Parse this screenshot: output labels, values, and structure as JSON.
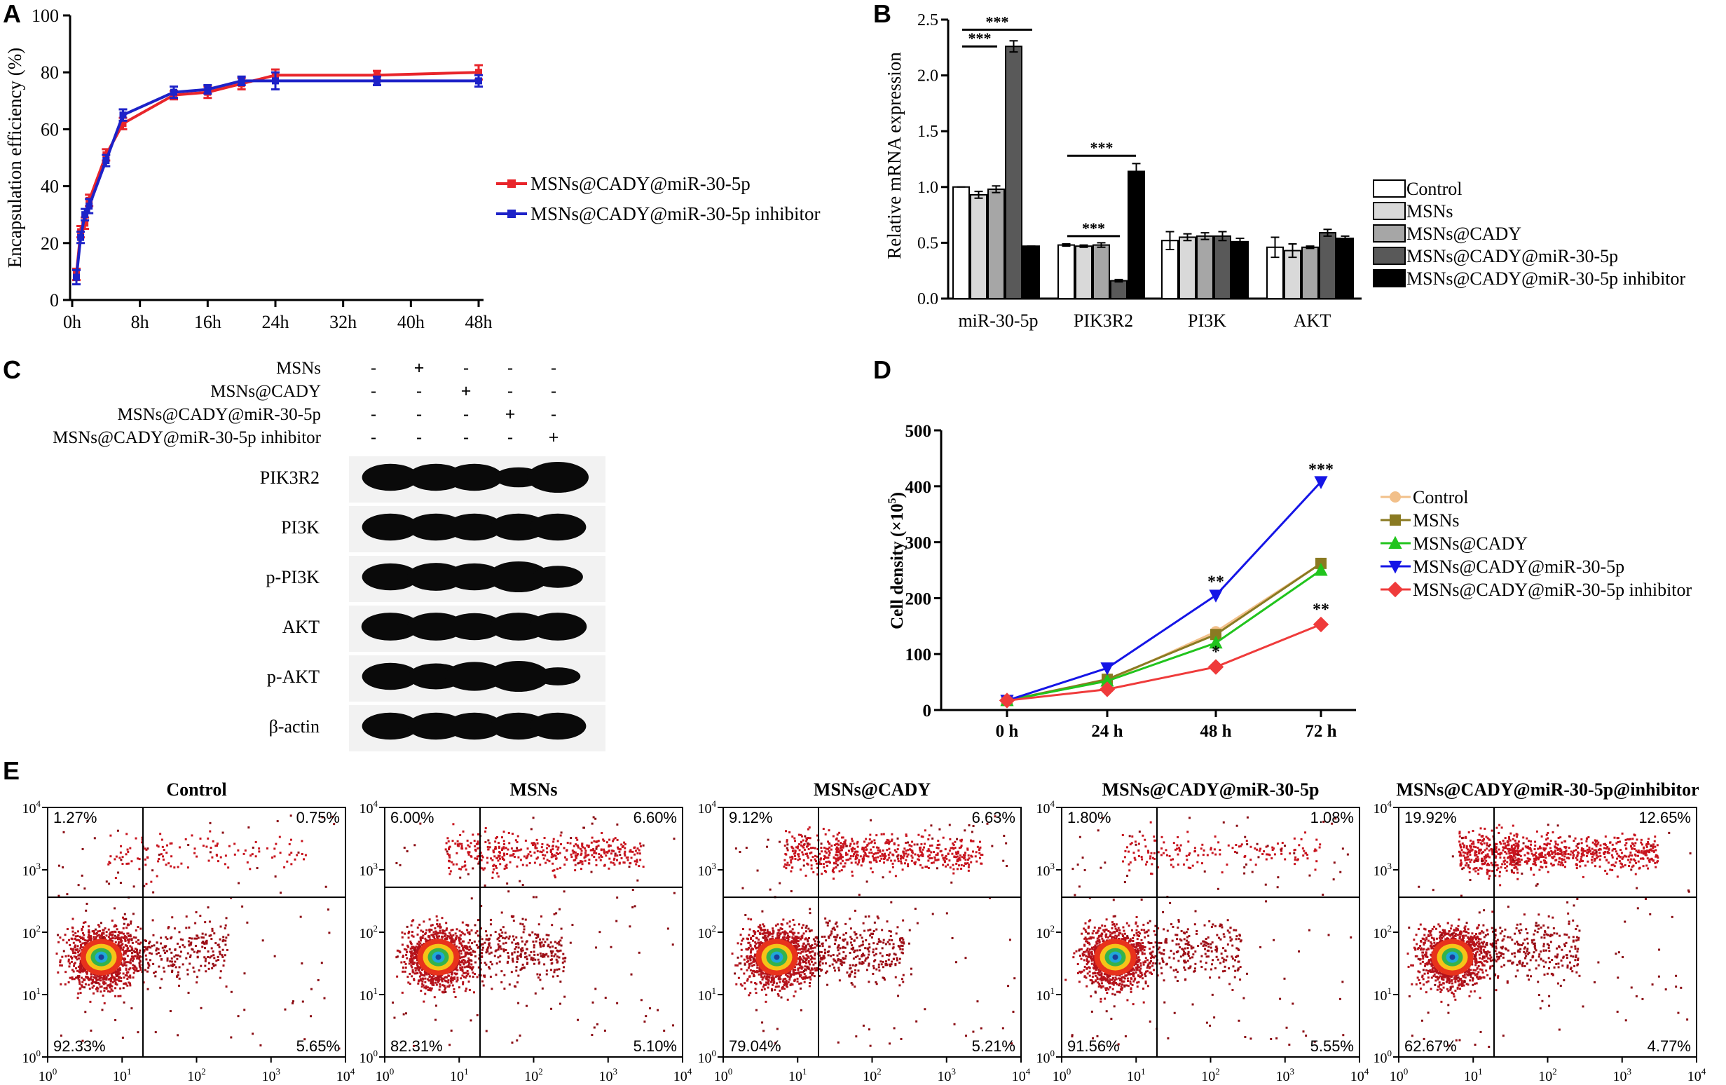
{
  "panel_labels": {
    "A": "A",
    "B": "B",
    "C": "C",
    "D": "D",
    "E": "E"
  },
  "colors": {
    "red": "#e8252b",
    "blue": "#1d22c8",
    "tan": "#f2c08a",
    "olive": "#8a7a22",
    "green": "#21c41d",
    "blue_d": "#1515e6",
    "red_d": "#ef3b3b"
  },
  "chart_data": [
    {
      "id": "A",
      "type": "line",
      "ylabel": "Encapsulation efficiency (%)",
      "xlabel": "",
      "ylim": [
        0,
        100
      ],
      "yticks": [
        "0",
        "20",
        "40",
        "60",
        "80",
        "100"
      ],
      "xlim": [
        0,
        48
      ],
      "xticks": [
        0,
        8,
        16,
        24,
        32,
        40,
        48
      ],
      "xtick_labels": [
        "0h",
        "8h",
        "16h",
        "24h",
        "32h",
        "40h",
        "48h"
      ],
      "legend": "right",
      "series": [
        {
          "name": "MSNs@CADY@miR-30-5p",
          "color": "#e8252b",
          "x": [
            0.5,
            1,
            1.5,
            2,
            4,
            6,
            12,
            16,
            20,
            24,
            36,
            48
          ],
          "y": [
            9,
            24,
            27,
            35,
            51,
            62,
            72,
            73,
            76,
            79,
            79,
            80
          ],
          "err": [
            2,
            2,
            2,
            2,
            2,
            2,
            1.5,
            2,
            2,
            2,
            1.5,
            2.5
          ]
        },
        {
          "name": "MSNs@CADY@miR-30-5p inhibitor",
          "color": "#1d22c8",
          "x": [
            0.5,
            1,
            1.5,
            2,
            4,
            6,
            12,
            16,
            20,
            24,
            36,
            48
          ],
          "y": [
            8,
            22,
            30,
            33,
            49,
            65,
            73,
            74,
            77,
            77,
            77,
            77
          ],
          "err": [
            2.5,
            2,
            2,
            2.5,
            2,
            2,
            2,
            1.5,
            1.5,
            3,
            1.5,
            2
          ]
        }
      ]
    },
    {
      "id": "B",
      "type": "bar",
      "ylabel": "Relative mRNA expression",
      "ylim": [
        0,
        2.5
      ],
      "yticks": [
        "0.0",
        "0.5",
        "1.0",
        "1.5",
        "2.0",
        "2.5"
      ],
      "categories": [
        "miR-30-5p",
        "PIK3R2",
        "PI3K",
        "AKT"
      ],
      "series": [
        {
          "name": "Control",
          "color": "#ffffff",
          "values": [
            1.0,
            0.48,
            0.52,
            0.46
          ],
          "err": [
            0.0,
            0.01,
            0.08,
            0.09
          ]
        },
        {
          "name": "MSNs",
          "color": "#d9d9d9",
          "values": [
            0.93,
            0.47,
            0.55,
            0.43
          ],
          "err": [
            0.03,
            0.01,
            0.03,
            0.06
          ]
        },
        {
          "name": "MSNs@CADY",
          "color": "#a6a6a6",
          "values": [
            0.98,
            0.48,
            0.56,
            0.46
          ],
          "err": [
            0.03,
            0.02,
            0.03,
            0.01
          ]
        },
        {
          "name": "MSNs@CADY@miR-30-5p",
          "color": "#595959",
          "values": [
            2.26,
            0.16,
            0.56,
            0.59
          ],
          "err": [
            0.05,
            0.01,
            0.04,
            0.03
          ]
        },
        {
          "name": "MSNs@CADY@miR-30-5p inhibitor",
          "color": "#000000",
          "values": [
            0.47,
            1.14,
            0.51,
            0.54
          ],
          "err": [
            0.0,
            0.07,
            0.03,
            0.02
          ]
        }
      ],
      "significance": [
        "***",
        "***",
        "***",
        "***"
      ]
    },
    {
      "id": "D",
      "type": "line",
      "ylabel": "Cell density (×10",
      "ylabel_sup": "5",
      "ylabel_close": ")",
      "ylim": [
        0,
        500
      ],
      "yticks": [
        "0",
        "100",
        "200",
        "300",
        "400",
        "500"
      ],
      "categories": [
        "0 h",
        "24 h",
        "48 h",
        "72 h"
      ],
      "series": [
        {
          "name": "Control",
          "color": "#f2c08a",
          "marker": "circle",
          "values": [
            17,
            52,
            140,
            262
          ]
        },
        {
          "name": "MSNs",
          "color": "#8a7a22",
          "marker": "square",
          "values": [
            17,
            55,
            135,
            262
          ]
        },
        {
          "name": "MSNs@CADY",
          "color": "#21c41d",
          "marker": "triangle-up",
          "values": [
            17,
            52,
            120,
            250
          ]
        },
        {
          "name": "MSNs@CADY@miR-30-5p",
          "color": "#1515e6",
          "marker": "triangle-down",
          "values": [
            17,
            75,
            205,
            408
          ]
        },
        {
          "name": "MSNs@CADY@miR-30-5p inhibitor",
          "color": "#ef3b3b",
          "marker": "diamond",
          "values": [
            17,
            37,
            77,
            153
          ]
        }
      ],
      "annotations": [
        "***",
        "**",
        "*",
        "**"
      ]
    }
  ],
  "western": {
    "treatments": [
      "MSNs",
      "MSNs@CADY",
      "MSNs@CADY@miR-30-5p",
      "MSNs@CADY@miR-30-5p  inhibitor"
    ],
    "matrix": [
      [
        "-",
        "+",
        "-",
        "-",
        "-"
      ],
      [
        "-",
        "-",
        "+",
        "-",
        "-"
      ],
      [
        "-",
        "-",
        "-",
        "+",
        "-"
      ],
      [
        "-",
        "-",
        "-",
        "-",
        "+"
      ]
    ],
    "proteins": [
      "PIK3R2",
      "PI3K",
      "p-PI3K",
      "AKT",
      "p-AKT",
      "β-actin"
    ],
    "intensity": [
      [
        0.8,
        0.8,
        0.8,
        0.45,
        1.0
      ],
      [
        0.8,
        0.8,
        0.8,
        0.8,
        0.8
      ],
      [
        0.8,
        0.85,
        0.8,
        1.0,
        0.55
      ],
      [
        0.85,
        0.85,
        0.8,
        0.85,
        0.85
      ],
      [
        0.8,
        0.75,
        0.9,
        1.0,
        0.35
      ],
      [
        0.8,
        0.8,
        0.8,
        0.8,
        0.8
      ]
    ]
  },
  "flow": {
    "x_ticks": [
      "10",
      "10",
      "10",
      "10",
      "10"
    ],
    "x_exps": [
      "0",
      "1",
      "2",
      "3",
      "4"
    ],
    "y_exps": [
      "4",
      "3",
      "2",
      "1",
      "0"
    ],
    "panels": [
      {
        "title": "Control",
        "q": [
          "1.27%",
          "0.75%",
          "92.33%",
          "5.65%"
        ],
        "early": 0.2,
        "late": 0.15,
        "necrotic": 0.15
      },
      {
        "title": "MSNs",
        "q": [
          "6.00%",
          "6.60%",
          "82.31%",
          "5.10%"
        ],
        "early": 0.35,
        "late": 0.6,
        "necrotic": 0.4
      },
      {
        "title": "MSNs@CADY",
        "q": [
          "9.12%",
          "6.63%",
          "79.04%",
          "5.21%"
        ],
        "early": 0.45,
        "late": 0.8,
        "necrotic": 0.6
      },
      {
        "title": "MSNs@CADY@miR-30-5p",
        "q": [
          "1.80%",
          "1.08%",
          "91.56%",
          "5.55%"
        ],
        "early": 0.2,
        "late": 0.2,
        "necrotic": 0.2
      },
      {
        "title": "MSNs@CADY@miR-30-5p@inhibitor",
        "q": [
          "19.92%",
          "12.65%",
          "62.67%",
          "4.77%"
        ],
        "early": 0.25,
        "late": 1.0,
        "necrotic": 1.0
      }
    ]
  }
}
